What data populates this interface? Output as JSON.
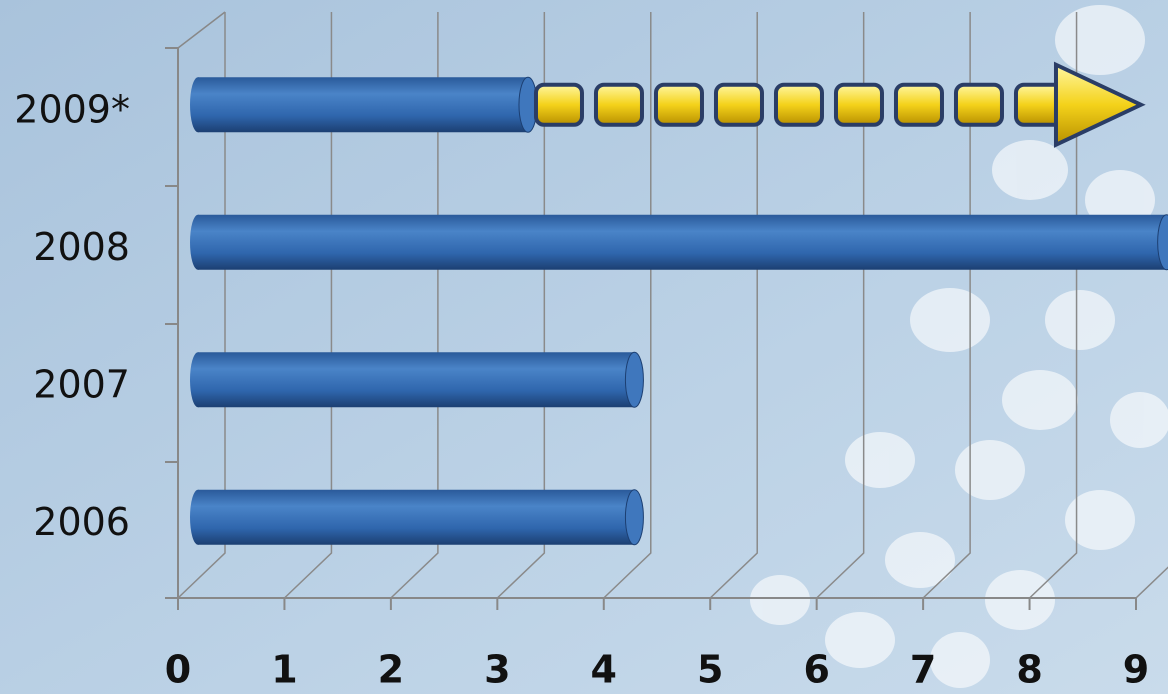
{
  "chart_data": {
    "type": "bar",
    "orientation": "horizontal",
    "categories": [
      "2006",
      "2007",
      "2008",
      "2009*"
    ],
    "values": [
      4.1,
      4.1,
      9.1,
      3.1
    ],
    "color": "#2f66ad",
    "xlim": [
      0,
      9
    ],
    "xticks": [
      0,
      1,
      2,
      3,
      4,
      5,
      6,
      7,
      8,
      9
    ],
    "grid": true
  }
}
